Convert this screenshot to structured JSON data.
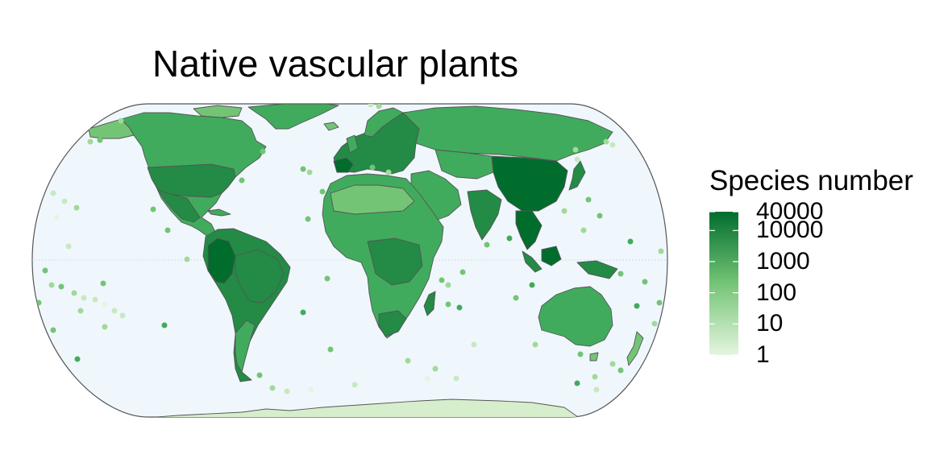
{
  "title": "Native vascular plants",
  "legend": {
    "title": "Species number",
    "scale": "log",
    "range": [
      1,
      40000
    ],
    "ticks": [
      {
        "value": 40000,
        "label": "40000"
      },
      {
        "value": 10000,
        "label": "10000"
      },
      {
        "value": 1000,
        "label": "1000"
      },
      {
        "value": 100,
        "label": "100"
      },
      {
        "value": 10,
        "label": "10"
      },
      {
        "value": 1,
        "label": "1"
      }
    ],
    "colors": {
      "low": "#e5f5e0",
      "mid": "#74c476",
      "high": "#006d2c"
    }
  },
  "map": {
    "projection": "equal-earth",
    "ocean_color": "#eff7fd",
    "border_color": "#555555",
    "antarctica_color": "#d6eecb",
    "equator_line": true
  }
}
